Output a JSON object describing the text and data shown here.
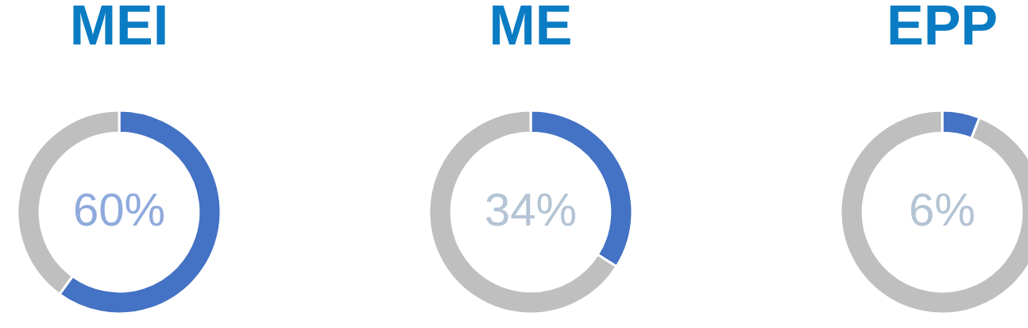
{
  "chart_data": [
    {
      "type": "donut",
      "title": "MEI",
      "categories": [
        null,
        null
      ],
      "values": [
        60,
        40
      ],
      "colors": [
        "#4472c4",
        "#bfbfbf"
      ],
      "annotations": [
        "60%"
      ]
    },
    {
      "type": "donut",
      "title": "ME",
      "categories": [
        null,
        null
      ],
      "values": [
        34,
        66
      ],
      "colors": [
        "#4472c4",
        "#bfbfbf"
      ],
      "annotations": [
        "34%"
      ]
    },
    {
      "type": "donut",
      "title": "EPP",
      "categories": [
        null,
        null
      ],
      "values": [
        6,
        94
      ],
      "colors": [
        "#4472c4",
        "#bfbfbf"
      ],
      "annotations": [
        "6%"
      ]
    }
  ]
}
